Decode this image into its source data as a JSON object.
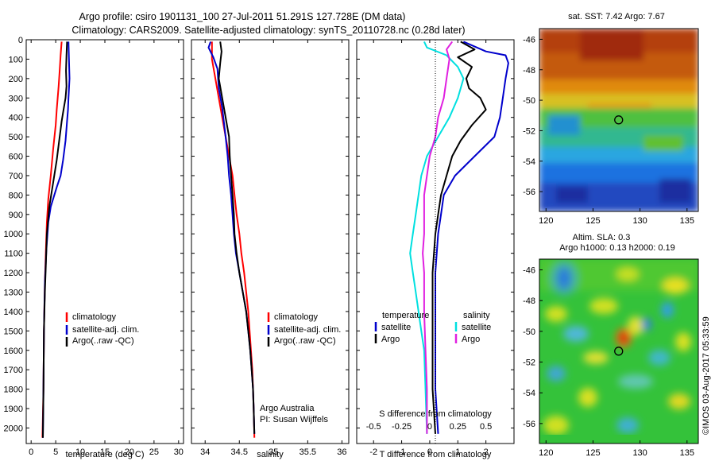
{
  "header": {
    "title_line1": "Argo profile: csiro 1901131_100 27-Jul-2011 51.291S 127.728E (DM data)",
    "title_line2": "Climatology: CARS2009. Satellite-adjusted climatology: synTS_20110728.nc (0.28d later)"
  },
  "colors": {
    "climatology": "#ff0000",
    "satellite": "#0000cc",
    "argo": "#000000",
    "salinity_sat": "#00e0e0",
    "salinity_argo": "#e020e0"
  },
  "chart_data": [
    {
      "type": "line",
      "id": "temperature",
      "xlabel": "temperature (deg C)",
      "ylabel": "",
      "xlim": [
        -1,
        31
      ],
      "ylim": [
        2080,
        0
      ],
      "xticks": [
        0,
        5,
        10,
        15,
        20,
        25,
        30
      ],
      "yticks": [
        0,
        100,
        200,
        300,
        400,
        500,
        600,
        700,
        800,
        900,
        1000,
        1100,
        1200,
        1300,
        1400,
        1500,
        1600,
        1700,
        1800,
        1900,
        2000
      ],
      "legend": [
        "climatology",
        "satellite-adj. clim.",
        "Argo(..raw -QC)"
      ],
      "series": [
        {
          "name": "climatology",
          "color": "#ff0000",
          "points": [
            [
              6.2,
              10
            ],
            [
              6.0,
              80
            ],
            [
              5.8,
              160
            ],
            [
              5.6,
              240
            ],
            [
              5.4,
              300
            ],
            [
              5.2,
              360
            ],
            [
              5.0,
              440
            ],
            [
              4.5,
              560
            ],
            [
              4.0,
              700
            ],
            [
              3.5,
              820
            ],
            [
              3.2,
              940
            ],
            [
              3.0,
              1080
            ],
            [
              2.8,
              1250
            ],
            [
              2.6,
              1500
            ],
            [
              2.5,
              1800
            ],
            [
              2.3,
              2050
            ]
          ]
        },
        {
          "name": "satellite-adj. clim.",
          "color": "#0000cc",
          "points": [
            [
              7.6,
              10
            ],
            [
              7.7,
              100
            ],
            [
              7.8,
              200
            ],
            [
              7.6,
              300
            ],
            [
              7.5,
              360
            ],
            [
              7.3,
              420
            ],
            [
              7.0,
              520
            ],
            [
              6.5,
              620
            ],
            [
              6.0,
              700
            ],
            [
              5.2,
              760
            ],
            [
              4.0,
              860
            ],
            [
              3.5,
              940
            ],
            [
              3.1,
              1080
            ],
            [
              2.8,
              1250
            ],
            [
              2.6,
              1500
            ],
            [
              2.5,
              1800
            ],
            [
              2.4,
              2050
            ]
          ]
        },
        {
          "name": "Argo(..raw -QC)",
          "color": "#000000",
          "points": [
            [
              7.3,
              10
            ],
            [
              7.2,
              80
            ],
            [
              7.1,
              160
            ],
            [
              7.2,
              240
            ],
            [
              7.0,
              300
            ],
            [
              6.6,
              360
            ],
            [
              6.2,
              420
            ],
            [
              5.7,
              520
            ],
            [
              5.2,
              620
            ],
            [
              4.7,
              700
            ],
            [
              4.2,
              780
            ],
            [
              3.7,
              860
            ],
            [
              3.2,
              1000
            ],
            [
              3.0,
              1150
            ],
            [
              2.8,
              1300
            ],
            [
              2.6,
              1500
            ],
            [
              2.5,
              1800
            ],
            [
              2.4,
              2050
            ]
          ]
        }
      ]
    },
    {
      "type": "line",
      "id": "salinity",
      "xlabel": "salinity",
      "xlim": [
        33.8,
        36.1
      ],
      "ylim": [
        2080,
        0
      ],
      "xticks": [
        34,
        34.5,
        35,
        35.5,
        36
      ],
      "legend": [
        "climatology",
        "satellite-adj. clim.",
        "Argo(..raw -QC)"
      ],
      "annotation": [
        "Argo Australia",
        "PI: Susan Wijffels"
      ],
      "series": [
        {
          "name": "climatology",
          "color": "#ff0000",
          "points": [
            [
              34.1,
              10
            ],
            [
              34.1,
              100
            ],
            [
              34.15,
              200
            ],
            [
              34.2,
              300
            ],
            [
              34.25,
              400
            ],
            [
              34.3,
              500
            ],
            [
              34.35,
              600
            ],
            [
              34.4,
              700
            ],
            [
              34.43,
              800
            ],
            [
              34.46,
              900
            ],
            [
              34.5,
              1000
            ],
            [
              34.53,
              1100
            ],
            [
              34.57,
              1200
            ],
            [
              34.6,
              1300
            ],
            [
              34.63,
              1400
            ],
            [
              34.65,
              1500
            ],
            [
              34.67,
              1600
            ],
            [
              34.69,
              1700
            ],
            [
              34.7,
              1800
            ],
            [
              34.71,
              1900
            ],
            [
              34.72,
              2050
            ]
          ]
        },
        {
          "name": "satellite-adj. clim.",
          "color": "#0000cc",
          "points": [
            [
              34.08,
              10
            ],
            [
              34.05,
              40
            ],
            [
              34.12,
              90
            ],
            [
              34.18,
              150
            ],
            [
              34.2,
              250
            ],
            [
              34.25,
              350
            ],
            [
              34.3,
              500
            ],
            [
              34.33,
              600
            ],
            [
              34.35,
              700
            ],
            [
              34.38,
              800
            ],
            [
              34.4,
              900
            ],
            [
              34.42,
              1000
            ],
            [
              34.45,
              1100
            ],
            [
              34.5,
              1200
            ],
            [
              34.55,
              1300
            ],
            [
              34.6,
              1400
            ],
            [
              34.63,
              1500
            ],
            [
              34.66,
              1600
            ],
            [
              34.68,
              1700
            ],
            [
              34.7,
              1800
            ],
            [
              34.71,
              1900
            ],
            [
              34.72,
              2030
            ]
          ]
        },
        {
          "name": "Argo(..raw -QC)",
          "color": "#000000",
          "points": [
            [
              34.22,
              10
            ],
            [
              34.24,
              60
            ],
            [
              34.22,
              120
            ],
            [
              34.2,
              200
            ],
            [
              34.25,
              300
            ],
            [
              34.3,
              400
            ],
            [
              34.35,
              500
            ],
            [
              34.36,
              600
            ],
            [
              34.38,
              700
            ],
            [
              34.4,
              800
            ],
            [
              34.42,
              900
            ],
            [
              34.43,
              1000
            ],
            [
              34.46,
              1100
            ],
            [
              34.5,
              1200
            ],
            [
              34.55,
              1300
            ],
            [
              34.6,
              1400
            ],
            [
              34.63,
              1500
            ],
            [
              34.66,
              1600
            ],
            [
              34.68,
              1700
            ],
            [
              34.7,
              1800
            ],
            [
              34.71,
              1900
            ],
            [
              34.72,
              2030
            ]
          ]
        }
      ]
    },
    {
      "type": "line",
      "id": "differences",
      "xlabel": "T difference from climatology",
      "xlabel_top": "S difference from climatology",
      "xlim": [
        -2.6,
        3.0
      ],
      "ylim": [
        2080,
        0
      ],
      "xticks": [
        -2,
        -1,
        0,
        1,
        2
      ],
      "xticks_S": [
        -0.5,
        -0.25,
        0,
        0.25,
        0.5
      ],
      "legend_titles": [
        "temperature",
        "salinity"
      ],
      "legend": [
        "satellite",
        "Argo",
        "satellite",
        "Argo"
      ],
      "series": [
        {
          "name": "satellite",
          "group": "temperature",
          "color": "#0000cc",
          "points": [
            [
              1.2,
              10
            ],
            [
              2.0,
              60
            ],
            [
              2.7,
              80
            ],
            [
              2.8,
              120
            ],
            [
              2.7,
              200
            ],
            [
              2.6,
              300
            ],
            [
              2.5,
              400
            ],
            [
              2.3,
              500
            ],
            [
              1.6,
              600
            ],
            [
              0.9,
              700
            ],
            [
              0.5,
              800
            ],
            [
              0.4,
              900
            ],
            [
              0.3,
              1000
            ],
            [
              0.2,
              1200
            ],
            [
              0.2,
              1500
            ],
            [
              0.2,
              1800
            ],
            [
              0.3,
              2030
            ]
          ]
        },
        {
          "name": "Argo",
          "group": "temperature",
          "color": "#000000",
          "points": [
            [
              1.1,
              10
            ],
            [
              1.6,
              50
            ],
            [
              1.0,
              90
            ],
            [
              1.5,
              140
            ],
            [
              1.3,
              200
            ],
            [
              1.4,
              250
            ],
            [
              1.8,
              300
            ],
            [
              2.0,
              360
            ],
            [
              1.5,
              440
            ],
            [
              1.1,
              520
            ],
            [
              0.8,
              600
            ],
            [
              0.6,
              700
            ],
            [
              0.4,
              800
            ],
            [
              0.3,
              900
            ],
            [
              0.2,
              1000
            ],
            [
              0.1,
              1200
            ],
            [
              0.1,
              1500
            ],
            [
              0.1,
              1800
            ],
            [
              0.2,
              2030
            ]
          ]
        },
        {
          "name": "satellite",
          "group": "salinity",
          "color": "#00e0e0",
          "points": [
            [
              -0.2,
              10
            ],
            [
              -0.1,
              40
            ],
            [
              0.6,
              80
            ],
            [
              1.0,
              140
            ],
            [
              1.2,
              200
            ],
            [
              1.0,
              300
            ],
            [
              0.7,
              400
            ],
            [
              0.3,
              500
            ],
            [
              -0.1,
              600
            ],
            [
              -0.3,
              700
            ],
            [
              -0.4,
              800
            ],
            [
              -0.5,
              900
            ],
            [
              -0.6,
              1000
            ],
            [
              -0.7,
              1100
            ],
            [
              -0.6,
              1200
            ],
            [
              -0.5,
              1300
            ],
            [
              -0.4,
              1400
            ],
            [
              -0.3,
              1500
            ],
            [
              -0.2,
              1600
            ],
            [
              -0.15,
              1800
            ],
            [
              -0.1,
              2030
            ]
          ]
        },
        {
          "name": "Argo",
          "group": "salinity",
          "color": "#e020e0",
          "points": [
            [
              0.8,
              10
            ],
            [
              0.6,
              50
            ],
            [
              0.7,
              100
            ],
            [
              0.6,
              200
            ],
            [
              0.5,
              300
            ],
            [
              0.3,
              400
            ],
            [
              0.2,
              500
            ],
            [
              0.0,
              600
            ],
            [
              -0.1,
              700
            ],
            [
              -0.2,
              800
            ],
            [
              -0.2,
              900
            ],
            [
              -0.2,
              1000
            ],
            [
              -0.25,
              1100
            ],
            [
              -0.2,
              1200
            ],
            [
              -0.2,
              1400
            ],
            [
              -0.15,
              1600
            ],
            [
              -0.1,
              1800
            ],
            [
              -0.1,
              2030
            ]
          ]
        }
      ]
    },
    {
      "type": "heatmap",
      "id": "sst-map",
      "title": "sat. SST: 7.42 Argo: 7.67",
      "xlim": [
        119.3,
        136.2
      ],
      "ylim": [
        -57.3,
        -45.3
      ],
      "xticks": [
        120,
        125,
        130,
        135
      ],
      "yticks": [
        -46,
        -48,
        -50,
        -52,
        -54,
        -56
      ],
      "marker": {
        "lon": 127.728,
        "lat": -51.291
      }
    },
    {
      "type": "heatmap",
      "id": "sla-map",
      "title_line1": "Altim. SLA: 0.3",
      "title_line2": "Argo h1000: 0.13 h2000: 0.19",
      "xlim": [
        119.3,
        136.2
      ],
      "ylim": [
        -57.3,
        -45.3
      ],
      "xticks": [
        120,
        125,
        130,
        135
      ],
      "yticks": [
        -46,
        -48,
        -50,
        -52,
        -54,
        -56
      ],
      "marker": {
        "lon": 127.728,
        "lat": -51.291
      }
    }
  ],
  "credit": "©IMOS 03-Aug-2017 05:33:59"
}
